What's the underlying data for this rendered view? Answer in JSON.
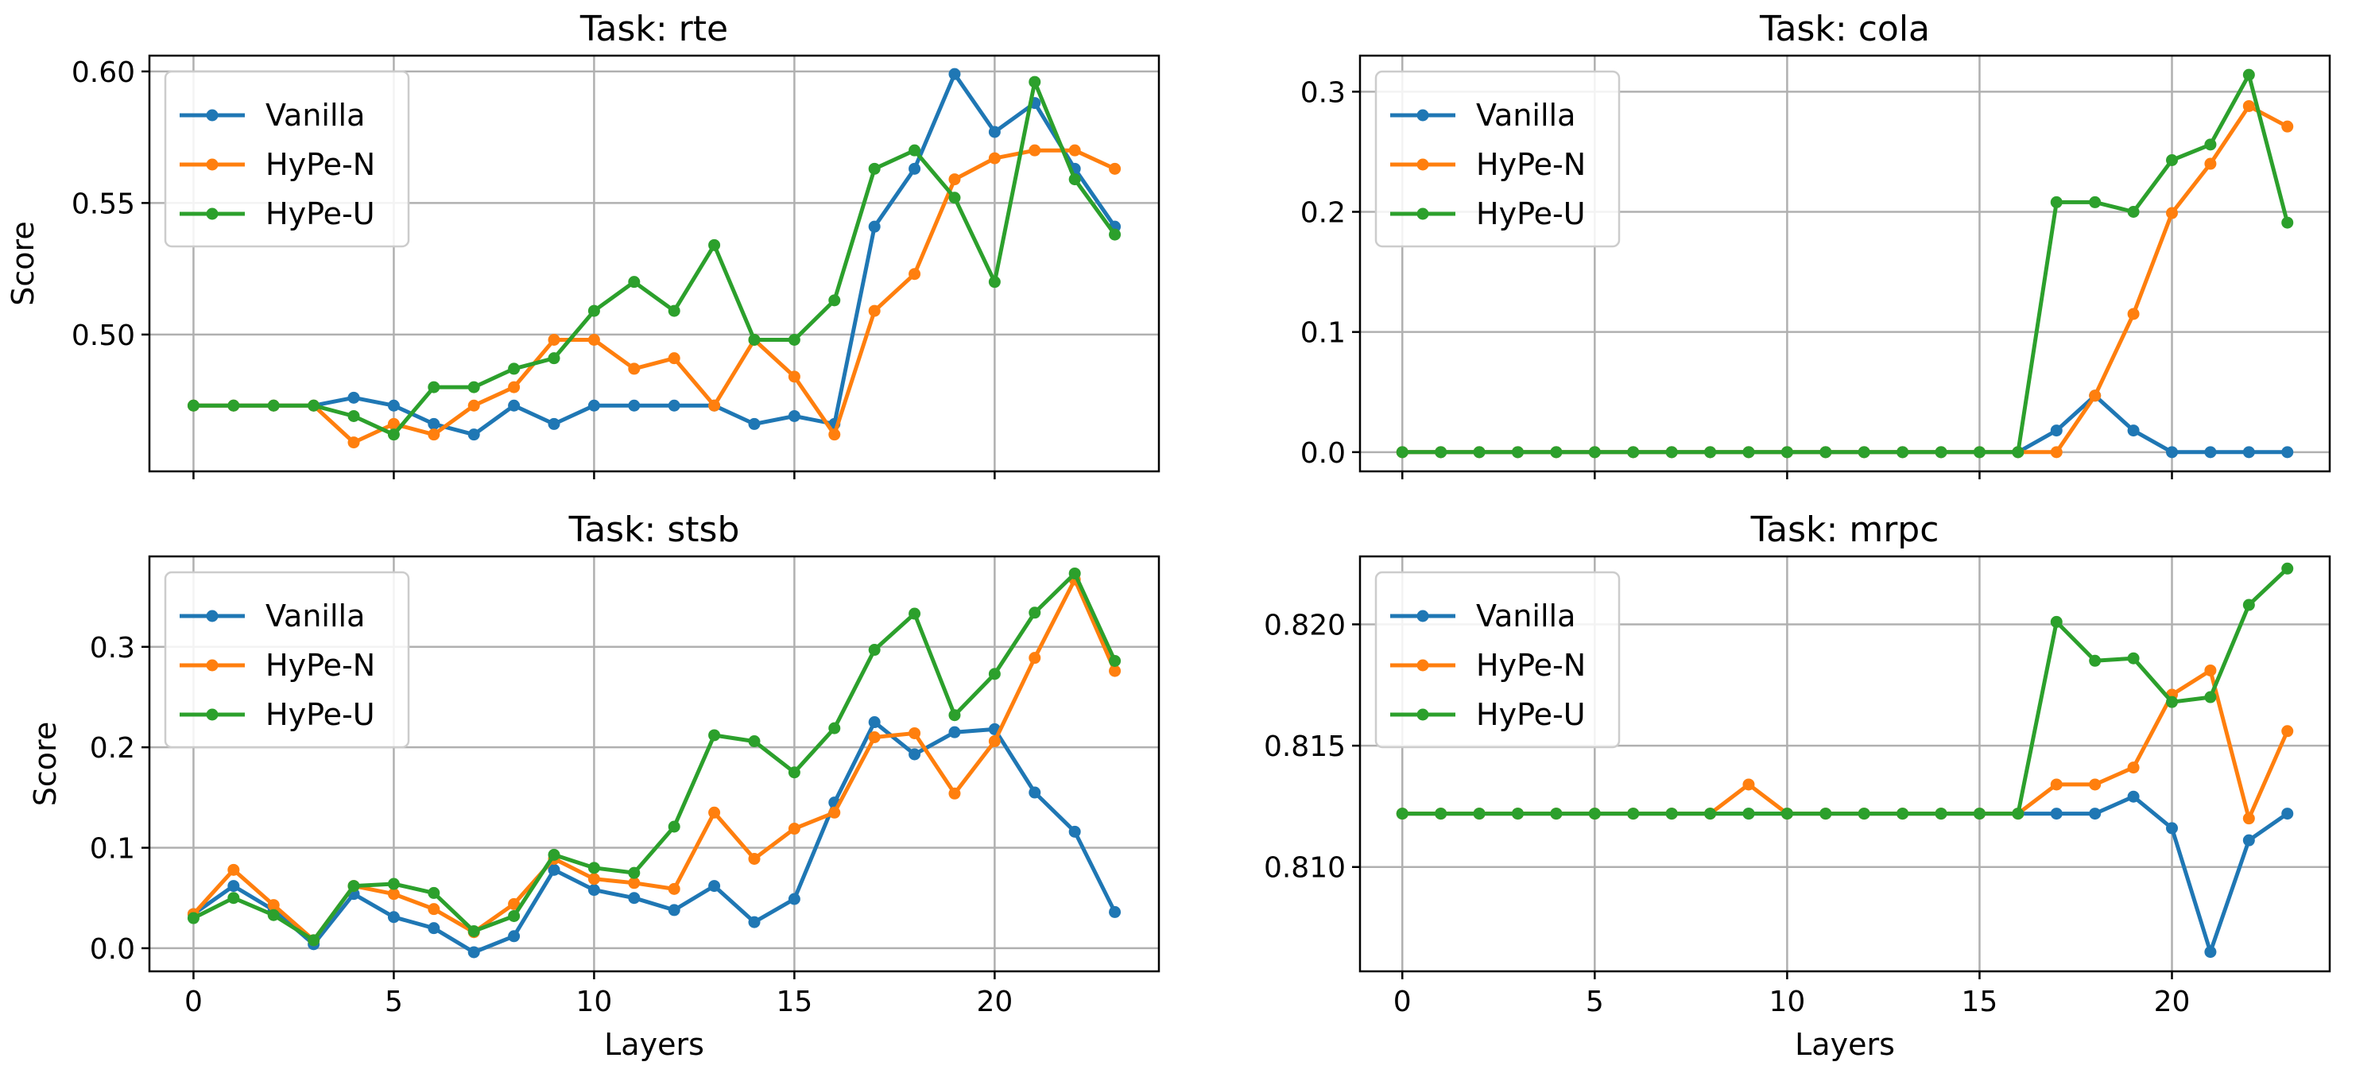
{
  "chart_data": [
    {
      "type": "line",
      "title": "Task: rte",
      "xlabel": "",
      "ylabel": "Score",
      "xlim": [
        -1.1,
        24.1
      ],
      "ylim": [
        0.448,
        0.606
      ],
      "xticks": [
        0,
        5,
        10,
        15,
        20
      ],
      "xtick_labels": [],
      "yticks": [
        0.5,
        0.55,
        0.6
      ],
      "ytick_labels": [
        "0.50",
        "0.55",
        "0.60"
      ],
      "grid": true,
      "legend_position": "upper-left",
      "x": [
        0,
        1,
        2,
        3,
        4,
        5,
        6,
        7,
        8,
        9,
        10,
        11,
        12,
        13,
        14,
        15,
        16,
        17,
        18,
        19,
        20,
        21,
        22,
        23
      ],
      "series": [
        {
          "name": "Vanilla",
          "color": "#1f77b4",
          "values": [
            0.473,
            0.473,
            0.473,
            0.473,
            0.476,
            0.473,
            0.466,
            0.462,
            0.473,
            0.466,
            0.473,
            0.473,
            0.473,
            0.473,
            0.466,
            0.469,
            0.466,
            0.541,
            0.563,
            0.599,
            0.577,
            0.588,
            0.563,
            0.541
          ]
        },
        {
          "name": "HyPe-N",
          "color": "#ff7f0e",
          "values": [
            0.473,
            0.473,
            0.473,
            0.473,
            0.459,
            0.466,
            0.462,
            0.473,
            0.48,
            0.498,
            0.498,
            0.487,
            0.491,
            0.473,
            0.498,
            0.484,
            0.462,
            0.509,
            0.523,
            0.559,
            0.567,
            0.57,
            0.57,
            0.563
          ]
        },
        {
          "name": "HyPe-U",
          "color": "#2ca02c",
          "values": [
            0.473,
            0.473,
            0.473,
            0.473,
            0.469,
            0.462,
            0.48,
            0.48,
            0.487,
            0.491,
            0.509,
            0.52,
            0.509,
            0.534,
            0.498,
            0.498,
            0.513,
            0.563,
            0.57,
            0.552,
            0.52,
            0.596,
            0.559,
            0.538
          ]
        }
      ]
    },
    {
      "type": "line",
      "title": "Task: cola",
      "xlabel": "",
      "ylabel": "",
      "xlim": [
        -1.1,
        24.1
      ],
      "ylim": [
        -0.016,
        0.33
      ],
      "xticks": [
        0,
        5,
        10,
        15,
        20
      ],
      "xtick_labels": [],
      "yticks": [
        0.0,
        0.1,
        0.2,
        0.3
      ],
      "ytick_labels": [
        "0.0",
        "0.1",
        "0.2",
        "0.3"
      ],
      "grid": true,
      "legend_position": "upper-left",
      "x": [
        0,
        1,
        2,
        3,
        4,
        5,
        6,
        7,
        8,
        9,
        10,
        11,
        12,
        13,
        14,
        15,
        16,
        17,
        18,
        19,
        20,
        21,
        22,
        23
      ],
      "series": [
        {
          "name": "Vanilla",
          "color": "#1f77b4",
          "values": [
            0,
            0,
            0,
            0,
            0,
            0,
            0,
            0,
            0,
            0,
            0,
            0,
            0,
            0,
            0,
            0,
            0,
            0.018,
            0.047,
            0.018,
            0,
            0,
            0,
            0
          ]
        },
        {
          "name": "HyPe-N",
          "color": "#ff7f0e",
          "values": [
            0,
            0,
            0,
            0,
            0,
            0,
            0,
            0,
            0,
            0,
            0,
            0,
            0,
            0,
            0,
            0,
            0,
            0,
            0.047,
            0.115,
            0.199,
            0.24,
            0.288,
            0.271
          ]
        },
        {
          "name": "HyPe-U",
          "color": "#2ca02c",
          "values": [
            0,
            0,
            0,
            0,
            0,
            0,
            0,
            0,
            0,
            0,
            0,
            0,
            0,
            0,
            0,
            0,
            0,
            0.208,
            0.208,
            0.2,
            0.243,
            0.256,
            0.314,
            0.191
          ]
        }
      ]
    },
    {
      "type": "line",
      "title": "Task: stsb",
      "xlabel": "Layers",
      "ylabel": "Score",
      "xlim": [
        -1.1,
        24.1
      ],
      "ylim": [
        -0.023,
        0.39
      ],
      "xticks": [
        0,
        5,
        10,
        15,
        20
      ],
      "xtick_labels": [
        "0",
        "5",
        "10",
        "15",
        "20"
      ],
      "yticks": [
        0.0,
        0.1,
        0.2,
        0.3
      ],
      "ytick_labels": [
        "0.0",
        "0.1",
        "0.2",
        "0.3"
      ],
      "grid": true,
      "legend_position": "upper-left",
      "x": [
        0,
        1,
        2,
        3,
        4,
        5,
        6,
        7,
        8,
        9,
        10,
        11,
        12,
        13,
        14,
        15,
        16,
        17,
        18,
        19,
        20,
        21,
        22,
        23
      ],
      "series": [
        {
          "name": "Vanilla",
          "color": "#1f77b4",
          "values": [
            0.034,
            0.062,
            0.038,
            0.004,
            0.054,
            0.031,
            0.02,
            -0.004,
            0.012,
            0.078,
            0.058,
            0.05,
            0.038,
            0.062,
            0.026,
            0.049,
            0.145,
            0.225,
            0.193,
            0.215,
            0.218,
            0.155,
            0.116,
            0.036
          ]
        },
        {
          "name": "HyPe-N",
          "color": "#ff7f0e",
          "values": [
            0.034,
            0.078,
            0.043,
            0.008,
            0.062,
            0.054,
            0.039,
            0.016,
            0.044,
            0.089,
            0.069,
            0.065,
            0.059,
            0.135,
            0.089,
            0.119,
            0.135,
            0.21,
            0.214,
            0.154,
            0.206,
            0.289,
            0.367,
            0.276
          ]
        },
        {
          "name": "HyPe-U",
          "color": "#2ca02c",
          "values": [
            0.03,
            0.05,
            0.033,
            0.008,
            0.062,
            0.064,
            0.055,
            0.017,
            0.032,
            0.093,
            0.08,
            0.075,
            0.121,
            0.212,
            0.206,
            0.175,
            0.219,
            0.297,
            0.333,
            0.232,
            0.273,
            0.334,
            0.373,
            0.286
          ]
        }
      ]
    },
    {
      "type": "line",
      "title": "Task: mrpc",
      "xlabel": "Layers",
      "ylabel": "",
      "xlim": [
        -1.1,
        24.1
      ],
      "ylim": [
        0.8057,
        0.8228
      ],
      "xticks": [
        0,
        5,
        10,
        15,
        20
      ],
      "xtick_labels": [
        "0",
        "5",
        "10",
        "15",
        "20"
      ],
      "yticks": [
        0.81,
        0.815,
        0.82
      ],
      "ytick_labels": [
        "0.810",
        "0.815",
        "0.820"
      ],
      "grid": true,
      "legend_position": "upper-left",
      "x": [
        0,
        1,
        2,
        3,
        4,
        5,
        6,
        7,
        8,
        9,
        10,
        11,
        12,
        13,
        14,
        15,
        16,
        17,
        18,
        19,
        20,
        21,
        22,
        23
      ],
      "series": [
        {
          "name": "Vanilla",
          "color": "#1f77b4",
          "values": [
            0.8122,
            0.8122,
            0.8122,
            0.8122,
            0.8122,
            0.8122,
            0.8122,
            0.8122,
            0.8122,
            0.8122,
            0.8122,
            0.8122,
            0.8122,
            0.8122,
            0.8122,
            0.8122,
            0.8122,
            0.8122,
            0.8122,
            0.8129,
            0.8116,
            0.8065,
            0.8111,
            0.8122
          ]
        },
        {
          "name": "HyPe-N",
          "color": "#ff7f0e",
          "values": [
            0.8122,
            0.8122,
            0.8122,
            0.8122,
            0.8122,
            0.8122,
            0.8122,
            0.8122,
            0.8122,
            0.8134,
            0.8122,
            0.8122,
            0.8122,
            0.8122,
            0.8122,
            0.8122,
            0.8122,
            0.8134,
            0.8134,
            0.8141,
            0.8171,
            0.8181,
            0.812,
            0.8156
          ]
        },
        {
          "name": "HyPe-U",
          "color": "#2ca02c",
          "values": [
            0.8122,
            0.8122,
            0.8122,
            0.8122,
            0.8122,
            0.8122,
            0.8122,
            0.8122,
            0.8122,
            0.8122,
            0.8122,
            0.8122,
            0.8122,
            0.8122,
            0.8122,
            0.8122,
            0.8122,
            0.8201,
            0.8185,
            0.8186,
            0.8168,
            0.817,
            0.8208,
            0.8223
          ]
        }
      ]
    }
  ]
}
